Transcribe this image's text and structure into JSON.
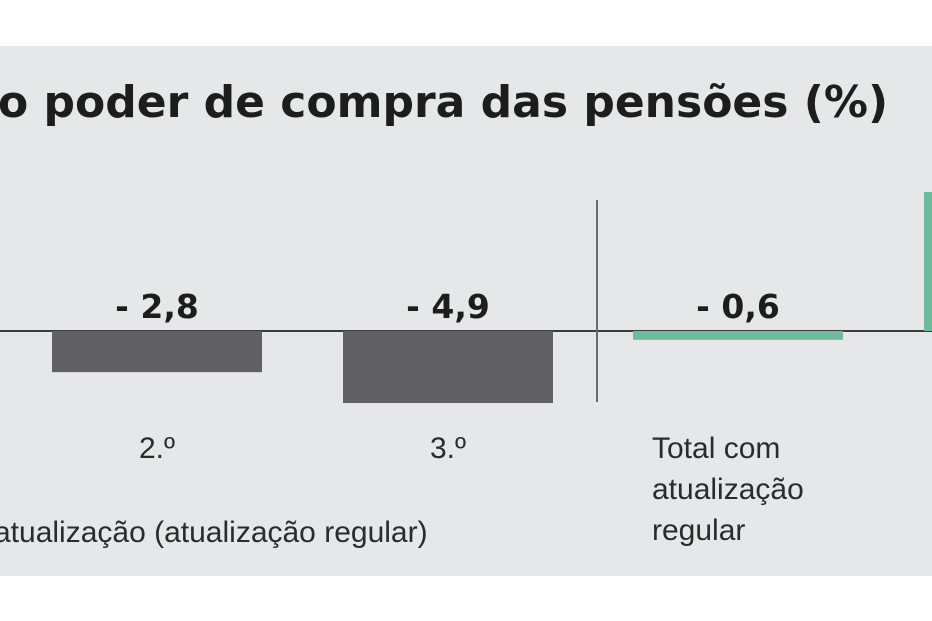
{
  "colors": {
    "background": "#e6e7e9",
    "bar": "#616063",
    "highlight": "#6fba9c",
    "text": "#1d1d1b",
    "axis": "#3c3c3c"
  },
  "chart_data": {
    "type": "bar",
    "title": "o poder de compra das pensões (%)",
    "categories": [
      "2.º",
      "3.º",
      "Total com atualização regular"
    ],
    "category_lines": [
      [
        "2.º"
      ],
      [
        "3.º"
      ],
      [
        "Total com",
        "atualização",
        "regular"
      ]
    ],
    "values": [
      -2.8,
      -4.9,
      -0.6
    ],
    "value_labels": [
      "- 2,8",
      "- 4,9",
      "- 0,6"
    ],
    "group_label": "atualização (atualização regular)",
    "ylim": [
      -5,
      9
    ],
    "grid": false,
    "xlabel": "",
    "ylabel": ""
  }
}
